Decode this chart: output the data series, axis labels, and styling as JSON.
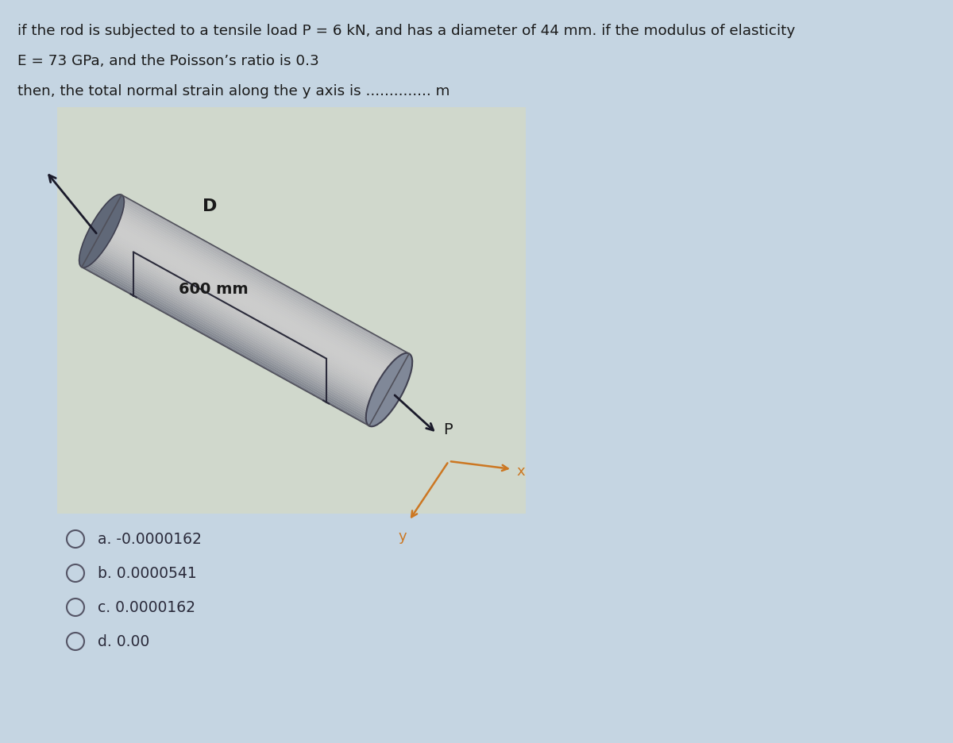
{
  "title_line1": "if the rod is subjected to a tensile load P = 6 kN, and has a diameter of 44 mm. if the modulus of elasticity",
  "title_line2": "E = 73 GPa, and the Poisson’s ratio is 0.3",
  "title_line3": "then, the total normal strain along the y axis is .............. m",
  "bg_color": "#c5d5e2",
  "img_box_color": "#d8ddd5",
  "text_color": "#1a1a1a",
  "options": [
    "a. -0.0000162",
    "b. 0.0000541",
    "c. 0.0000162",
    "d. 0.00"
  ],
  "rod_length_label": "600 mm",
  "rod_label_D": "D",
  "arrow_label_P": "P",
  "axis_label_x": "x",
  "axis_label_y": "y",
  "rod_color_light": [
    0.72,
    0.74,
    0.78
  ],
  "rod_color_dark": [
    0.42,
    0.44,
    0.5
  ],
  "rod_color_mid": [
    0.62,
    0.64,
    0.68
  ],
  "dim_line_color": "#2a2a3a",
  "arrow_color_dark": "#1a1a2a",
  "axis_color": "#cc7722"
}
